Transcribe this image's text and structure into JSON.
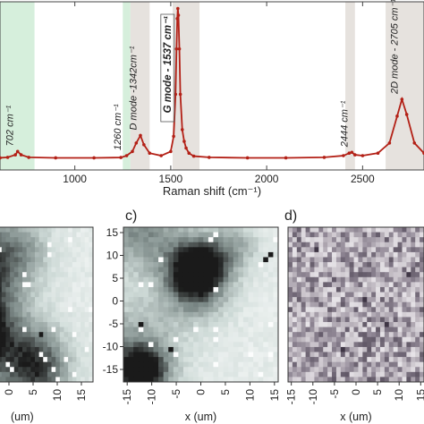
{
  "chart_data": [
    {
      "type": "line",
      "panel": "top",
      "xlabel": "Raman shift (cm⁻¹)",
      "xlim": [
        610,
        2820
      ],
      "ylim": [
        0,
        1.0
      ],
      "xticks": [
        1000,
        1500,
        2000,
        2500
      ],
      "xtick_labels": [
        "1000",
        "1500",
        "2000",
        "2500"
      ],
      "bands": [
        {
          "range": [
            610,
            790
          ],
          "color": "#d6efdc"
        },
        {
          "range": [
            1250,
            1290
          ],
          "color": "#d6efdc"
        },
        {
          "range": [
            1290,
            1390
          ],
          "color": "#e6e2de"
        },
        {
          "range": [
            1510,
            1650
          ],
          "color": "#e6e2de"
        },
        {
          "range": [
            2410,
            2460
          ],
          "color": "#e6e2de"
        },
        {
          "range": [
            2620,
            2820
          ],
          "color": "#e6e2de"
        }
      ],
      "series": [
        {
          "color": "#b32016",
          "x": [
            610,
            650,
            690,
            702,
            720,
            760,
            900,
            1100,
            1240,
            1270,
            1300,
            1320,
            1342,
            1360,
            1390,
            1450,
            1500,
            1515,
            1525,
            1530,
            1534,
            1537,
            1540,
            1545,
            1550,
            1560,
            1570,
            1580,
            1595,
            1620,
            1700,
            1900,
            2100,
            2300,
            2400,
            2430,
            2444,
            2460,
            2500,
            2580,
            2640,
            2680,
            2705,
            2730,
            2770,
            2820
          ],
          "y": [
            0.072,
            0.075,
            0.09,
            0.11,
            0.09,
            0.075,
            0.072,
            0.072,
            0.074,
            0.085,
            0.11,
            0.16,
            0.205,
            0.15,
            0.1,
            0.085,
            0.11,
            0.2,
            0.45,
            0.72,
            0.9,
            0.96,
            0.92,
            0.72,
            0.45,
            0.24,
            0.17,
            0.13,
            0.1,
            0.082,
            0.075,
            0.072,
            0.072,
            0.075,
            0.085,
            0.1,
            0.105,
            0.09,
            0.085,
            0.1,
            0.16,
            0.32,
            0.42,
            0.33,
            0.16,
            0.1
          ]
        }
      ],
      "annotations": [
        {
          "text": "702 cm⁻¹",
          "x": 702
        },
        {
          "text": "1260 cm⁻¹",
          "x": 1262
        },
        {
          "text": "D mode -1342cm⁻¹",
          "x": 1345
        },
        {
          "text": "G mode - 1537 cm⁻¹",
          "x": 1537
        },
        {
          "text": "2444 cm⁻¹",
          "x": 2444
        },
        {
          "text": "2D mode - 2705 cm⁻¹",
          "x": 2705
        }
      ]
    },
    {
      "type": "heatmap",
      "panel_label": "",
      "xlabel": "(um)",
      "ylabel": "",
      "xticks": [
        "0",
        "5",
        "10",
        "15"
      ],
      "yticks": [],
      "grid_size": 31,
      "colormap": [
        "#ffffff",
        "#cfdbd8",
        "#7f8c8a",
        "#1a1a1a"
      ],
      "dark_pixels": [
        [
          11,
          23
        ],
        [
          13,
          24
        ],
        [
          18,
          21
        ],
        [
          4,
          28
        ],
        [
          0,
          30
        ],
        [
          17,
          29
        ]
      ]
    },
    {
      "type": "heatmap",
      "panel_label": "c)",
      "xlabel": "x (um)",
      "ylabel": "",
      "xticks": [
        "-15",
        "-10",
        "-5",
        "0",
        "5",
        "10",
        "15"
      ],
      "yticks": [
        "15",
        "10",
        "5",
        "0",
        "-5",
        "-10",
        "-15"
      ],
      "grid_size": 31,
      "colormap": [
        "#ffffff",
        "#cfdbd8",
        "#7f8c8a",
        "#1a1a1a"
      ],
      "dark_pixels": [
        [
          13,
          11
        ],
        [
          15,
          13
        ],
        [
          29,
          5
        ],
        [
          28,
          6
        ],
        [
          3,
          19
        ],
        [
          9,
          24
        ],
        [
          1,
          27
        ]
      ]
    },
    {
      "type": "heatmap",
      "panel_label": "d)",
      "xlabel": "x (um)",
      "ylabel": "",
      "xticks": [
        "-15",
        "-10",
        "-5",
        "0",
        "5",
        "10",
        "15"
      ],
      "yticks": [],
      "grid_size": 31,
      "colormap": [
        "#f4f2f5",
        "#c9c3ca",
        "#8b8290",
        "#3f3645"
      ],
      "dark_pixels": [
        [
          17,
          14
        ],
        [
          6,
          4
        ],
        [
          22,
          19
        ],
        [
          12,
          24
        ],
        [
          27,
          9
        ]
      ]
    }
  ]
}
